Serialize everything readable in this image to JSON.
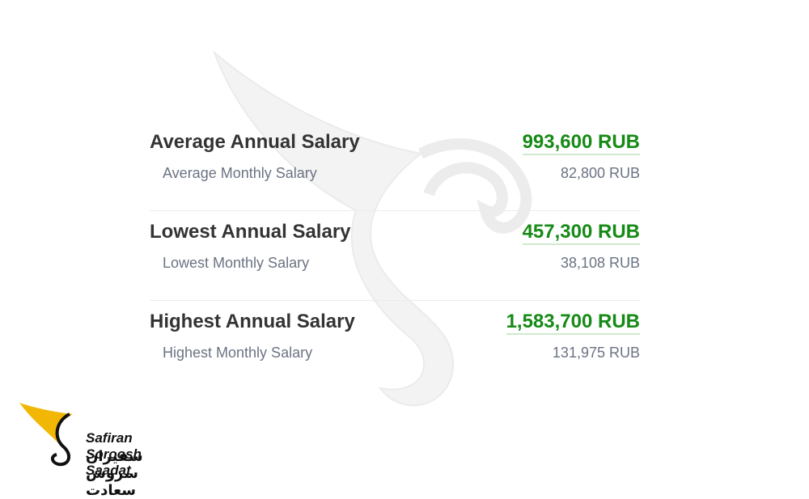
{
  "rows": [
    {
      "annual_label": "Average Annual Salary",
      "annual_value": "993,600 RUB",
      "monthly_label": "Average Monthly Salary",
      "monthly_value": "82,800 RUB"
    },
    {
      "annual_label": "Lowest Annual Salary",
      "annual_value": "457,300 RUB",
      "monthly_label": "Lowest Monthly Salary",
      "monthly_value": "38,108 RUB"
    },
    {
      "annual_label": "Highest Annual Salary",
      "annual_value": "1,583,700 RUB",
      "monthly_label": "Highest Monthly Salary",
      "monthly_value": "131,975 RUB"
    }
  ],
  "logo": {
    "name_en": "Safiran Soroosh Saadat",
    "name_fa": "سفیران سروش سعادت"
  }
}
